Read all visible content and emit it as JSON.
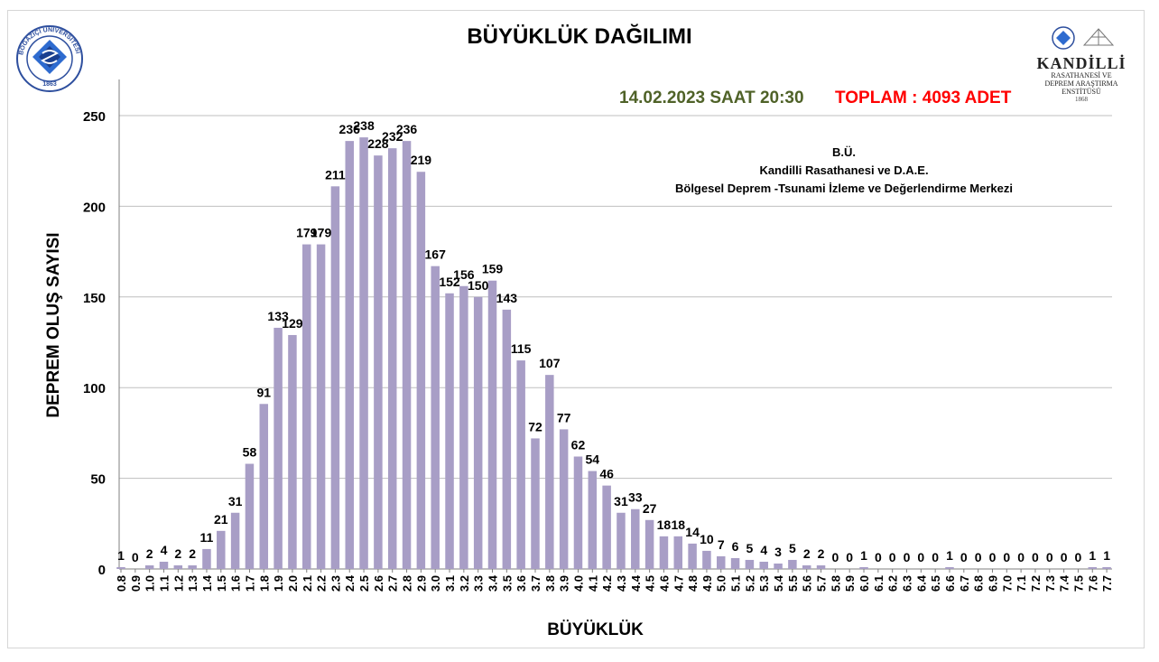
{
  "header": {
    "title": "BÜYÜKLÜK DAĞILIMI",
    "date_line": "14.02.2023 SAAT 20:30",
    "total_line": "TOPLAM : 4093  ADET"
  },
  "info": {
    "line1": "B.Ü.",
    "line2": "Kandilli Rasathanesi ve D.A.E.",
    "line3": "Bölgesel Deprem -Tsunami İzleme ve Değerlendirme Merkezi"
  },
  "logos": {
    "left_text": "BOĞAZİÇİ ÜNİVERSİTESİ",
    "left_year": "1863",
    "right_name": "KANDİLLİ",
    "right_sub1": "RASATHANESİ VE",
    "right_sub2": "DEPREM ARAŞTIRMA",
    "right_sub3": "ENSTİTÜSÜ",
    "right_year": "1868"
  },
  "colors": {
    "bar": "#a89ec6",
    "date": "#4f6228",
    "total": "#ff0000",
    "grid": "#bfbfbf"
  },
  "chart_data": {
    "type": "bar",
    "title": "BÜYÜKLÜK DAĞILIMI",
    "xlabel": "BÜYÜKLÜK",
    "ylabel": "DEPREM OLUŞ SAYISI",
    "ylim": [
      0,
      250
    ],
    "yticks": [
      0,
      50,
      100,
      150,
      200,
      250
    ],
    "grid": true,
    "categories": [
      "0.8",
      "0.9",
      "1.0",
      "1.1",
      "1.2",
      "1.3",
      "1.4",
      "1.5",
      "1.6",
      "1.7",
      "1.8",
      "1.9",
      "2.0",
      "2.1",
      "2.2",
      "2.3",
      "2.4",
      "2.5",
      "2.6",
      "2.7",
      "2.8",
      "2.9",
      "3.0",
      "3.1",
      "3.2",
      "3.3",
      "3.4",
      "3.5",
      "3.6",
      "3.7",
      "3.8",
      "3.9",
      "4.0",
      "4.1",
      "4.2",
      "4.3",
      "4.4",
      "4.5",
      "4.6",
      "4.7",
      "4.8",
      "4.9",
      "5.0",
      "5.1",
      "5.2",
      "5.3",
      "5.4",
      "5.5",
      "5.6",
      "5.7",
      "5.8",
      "5.9",
      "6.0",
      "6.1",
      "6.2",
      "6.3",
      "6.4",
      "6.5",
      "6.6",
      "6.7",
      "6.8",
      "6.9",
      "7.0",
      "7.1",
      "7.2",
      "7.3",
      "7.4",
      "7.5",
      "7.6",
      "7.7"
    ],
    "values": [
      1,
      0,
      2,
      4,
      2,
      2,
      11,
      21,
      31,
      58,
      91,
      133,
      129,
      179,
      179,
      211,
      236,
      238,
      228,
      232,
      236,
      219,
      167,
      152,
      156,
      150,
      159,
      143,
      115,
      72,
      107,
      77,
      62,
      54,
      46,
      31,
      33,
      27,
      18,
      18,
      14,
      10,
      7,
      6,
      5,
      4,
      3,
      5,
      2,
      2,
      0,
      0,
      1,
      0,
      0,
      0,
      0,
      0,
      1,
      0,
      0,
      0,
      0,
      0,
      0,
      0,
      0,
      0,
      1,
      1
    ]
  }
}
